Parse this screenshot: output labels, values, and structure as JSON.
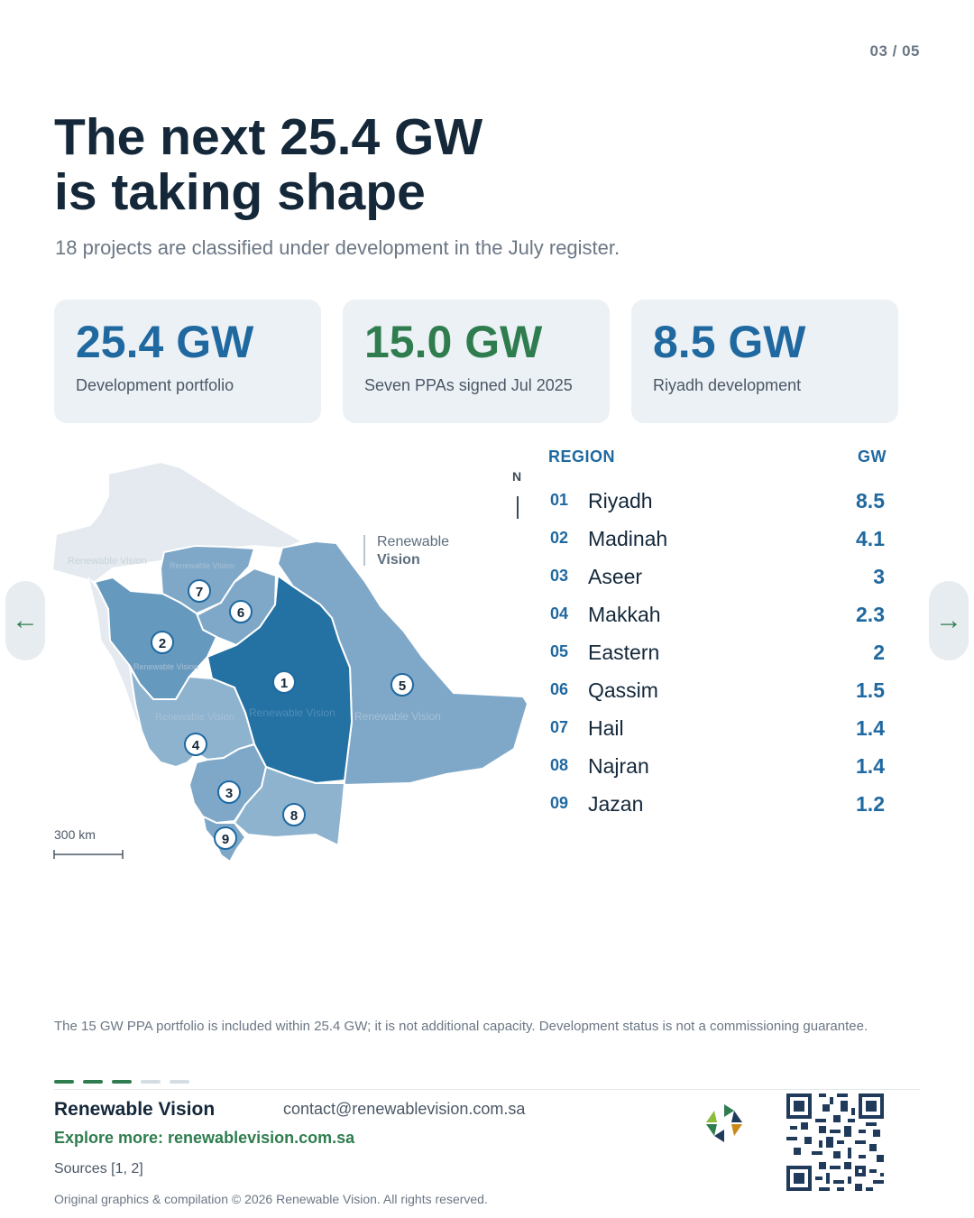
{
  "page_number": "03 / 05",
  "title_line1": "The next 25.4 GW",
  "title_line2": "is taking shape",
  "subtitle": "18 projects are classified under development in the July register.",
  "stats": [
    {
      "value": "25.4 GW",
      "label": "Development portfolio",
      "color": "#1f69a0"
    },
    {
      "value": "15.0 GW",
      "label": "Seven PPAs signed Jul 2025",
      "color": "#2f7d4f"
    },
    {
      "value": "8.5 GW",
      "label": "Riyadh development",
      "color": "#1f69a0"
    }
  ],
  "map": {
    "north": "N",
    "watermark_line1": "Renewable",
    "watermark_line2": "Vision",
    "region_watermark": "Renewable Vision",
    "scale_label": "300 km",
    "markers": [
      "1",
      "2",
      "3",
      "4",
      "5",
      "6",
      "7",
      "8",
      "9"
    ]
  },
  "table": {
    "header_region": "REGION",
    "header_gw": "GW",
    "rows": [
      {
        "idx": "01",
        "name": "Riyadh",
        "gw": "8.5"
      },
      {
        "idx": "02",
        "name": "Madinah",
        "gw": "4.1"
      },
      {
        "idx": "03",
        "name": "Aseer",
        "gw": "3"
      },
      {
        "idx": "04",
        "name": "Makkah",
        "gw": "2.3"
      },
      {
        "idx": "05",
        "name": "Eastern",
        "gw": "2"
      },
      {
        "idx": "06",
        "name": "Qassim",
        "gw": "1.5"
      },
      {
        "idx": "07",
        "name": "Hail",
        "gw": "1.4"
      },
      {
        "idx": "08",
        "name": "Najran",
        "gw": "1.4"
      },
      {
        "idx": "09",
        "name": "Jazan",
        "gw": "1.2"
      }
    ]
  },
  "nav": {
    "prev_icon": "arrow-left-icon",
    "next_icon": "arrow-right-icon",
    "prev": "←",
    "next": "→"
  },
  "note": "The 15 GW PPA portfolio is included within 25.4 GW; it is not additional capacity. Development status is not a commissioning guarantee.",
  "footer": {
    "brand": "Renewable Vision",
    "email": "contact@renewablevision.com.sa",
    "explore": "Explore more: renewablevision.com.sa",
    "sources": "Sources [1, 2]",
    "copyright": "Original graphics & compilation © 2026 Renewable Vision. All rights reserved."
  },
  "progress": {
    "current": 3,
    "total": 5
  },
  "colors": {
    "navy": "#14283a",
    "blue": "#1f69a0",
    "green": "#2f7d4f",
    "card": "#ecf1f5"
  }
}
